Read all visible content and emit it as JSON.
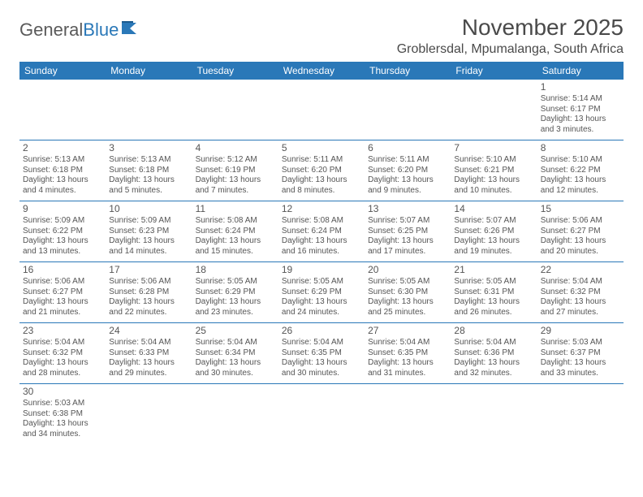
{
  "brand": {
    "part1": "General",
    "part2": "Blue"
  },
  "title": "November 2025",
  "location": "Groblersdal, Mpumalanga, South Africa",
  "colors": {
    "header_bg": "#2a78b8",
    "header_fg": "#ffffff",
    "text": "#555555",
    "border": "#2a78b8"
  },
  "font": {
    "family": "Arial",
    "day_size_pt": 7.5,
    "title_size_pt": 21
  },
  "weekdays": [
    "Sunday",
    "Monday",
    "Tuesday",
    "Wednesday",
    "Thursday",
    "Friday",
    "Saturday"
  ],
  "grid": [
    [
      null,
      null,
      null,
      null,
      null,
      null,
      {
        "n": "1",
        "sr": "Sunrise: 5:14 AM",
        "ss": "Sunset: 6:17 PM",
        "dl": "Daylight: 13 hours and 3 minutes."
      }
    ],
    [
      {
        "n": "2",
        "sr": "Sunrise: 5:13 AM",
        "ss": "Sunset: 6:18 PM",
        "dl": "Daylight: 13 hours and 4 minutes."
      },
      {
        "n": "3",
        "sr": "Sunrise: 5:13 AM",
        "ss": "Sunset: 6:18 PM",
        "dl": "Daylight: 13 hours and 5 minutes."
      },
      {
        "n": "4",
        "sr": "Sunrise: 5:12 AM",
        "ss": "Sunset: 6:19 PM",
        "dl": "Daylight: 13 hours and 7 minutes."
      },
      {
        "n": "5",
        "sr": "Sunrise: 5:11 AM",
        "ss": "Sunset: 6:20 PM",
        "dl": "Daylight: 13 hours and 8 minutes."
      },
      {
        "n": "6",
        "sr": "Sunrise: 5:11 AM",
        "ss": "Sunset: 6:20 PM",
        "dl": "Daylight: 13 hours and 9 minutes."
      },
      {
        "n": "7",
        "sr": "Sunrise: 5:10 AM",
        "ss": "Sunset: 6:21 PM",
        "dl": "Daylight: 13 hours and 10 minutes."
      },
      {
        "n": "8",
        "sr": "Sunrise: 5:10 AM",
        "ss": "Sunset: 6:22 PM",
        "dl": "Daylight: 13 hours and 12 minutes."
      }
    ],
    [
      {
        "n": "9",
        "sr": "Sunrise: 5:09 AM",
        "ss": "Sunset: 6:22 PM",
        "dl": "Daylight: 13 hours and 13 minutes."
      },
      {
        "n": "10",
        "sr": "Sunrise: 5:09 AM",
        "ss": "Sunset: 6:23 PM",
        "dl": "Daylight: 13 hours and 14 minutes."
      },
      {
        "n": "11",
        "sr": "Sunrise: 5:08 AM",
        "ss": "Sunset: 6:24 PM",
        "dl": "Daylight: 13 hours and 15 minutes."
      },
      {
        "n": "12",
        "sr": "Sunrise: 5:08 AM",
        "ss": "Sunset: 6:24 PM",
        "dl": "Daylight: 13 hours and 16 minutes."
      },
      {
        "n": "13",
        "sr": "Sunrise: 5:07 AM",
        "ss": "Sunset: 6:25 PM",
        "dl": "Daylight: 13 hours and 17 minutes."
      },
      {
        "n": "14",
        "sr": "Sunrise: 5:07 AM",
        "ss": "Sunset: 6:26 PM",
        "dl": "Daylight: 13 hours and 19 minutes."
      },
      {
        "n": "15",
        "sr": "Sunrise: 5:06 AM",
        "ss": "Sunset: 6:27 PM",
        "dl": "Daylight: 13 hours and 20 minutes."
      }
    ],
    [
      {
        "n": "16",
        "sr": "Sunrise: 5:06 AM",
        "ss": "Sunset: 6:27 PM",
        "dl": "Daylight: 13 hours and 21 minutes."
      },
      {
        "n": "17",
        "sr": "Sunrise: 5:06 AM",
        "ss": "Sunset: 6:28 PM",
        "dl": "Daylight: 13 hours and 22 minutes."
      },
      {
        "n": "18",
        "sr": "Sunrise: 5:05 AM",
        "ss": "Sunset: 6:29 PM",
        "dl": "Daylight: 13 hours and 23 minutes."
      },
      {
        "n": "19",
        "sr": "Sunrise: 5:05 AM",
        "ss": "Sunset: 6:29 PM",
        "dl": "Daylight: 13 hours and 24 minutes."
      },
      {
        "n": "20",
        "sr": "Sunrise: 5:05 AM",
        "ss": "Sunset: 6:30 PM",
        "dl": "Daylight: 13 hours and 25 minutes."
      },
      {
        "n": "21",
        "sr": "Sunrise: 5:05 AM",
        "ss": "Sunset: 6:31 PM",
        "dl": "Daylight: 13 hours and 26 minutes."
      },
      {
        "n": "22",
        "sr": "Sunrise: 5:04 AM",
        "ss": "Sunset: 6:32 PM",
        "dl": "Daylight: 13 hours and 27 minutes."
      }
    ],
    [
      {
        "n": "23",
        "sr": "Sunrise: 5:04 AM",
        "ss": "Sunset: 6:32 PM",
        "dl": "Daylight: 13 hours and 28 minutes."
      },
      {
        "n": "24",
        "sr": "Sunrise: 5:04 AM",
        "ss": "Sunset: 6:33 PM",
        "dl": "Daylight: 13 hours and 29 minutes."
      },
      {
        "n": "25",
        "sr": "Sunrise: 5:04 AM",
        "ss": "Sunset: 6:34 PM",
        "dl": "Daylight: 13 hours and 30 minutes."
      },
      {
        "n": "26",
        "sr": "Sunrise: 5:04 AM",
        "ss": "Sunset: 6:35 PM",
        "dl": "Daylight: 13 hours and 30 minutes."
      },
      {
        "n": "27",
        "sr": "Sunrise: 5:04 AM",
        "ss": "Sunset: 6:35 PM",
        "dl": "Daylight: 13 hours and 31 minutes."
      },
      {
        "n": "28",
        "sr": "Sunrise: 5:04 AM",
        "ss": "Sunset: 6:36 PM",
        "dl": "Daylight: 13 hours and 32 minutes."
      },
      {
        "n": "29",
        "sr": "Sunrise: 5:03 AM",
        "ss": "Sunset: 6:37 PM",
        "dl": "Daylight: 13 hours and 33 minutes."
      }
    ],
    [
      {
        "n": "30",
        "sr": "Sunrise: 5:03 AM",
        "ss": "Sunset: 6:38 PM",
        "dl": "Daylight: 13 hours and 34 minutes."
      },
      null,
      null,
      null,
      null,
      null,
      null
    ]
  ]
}
